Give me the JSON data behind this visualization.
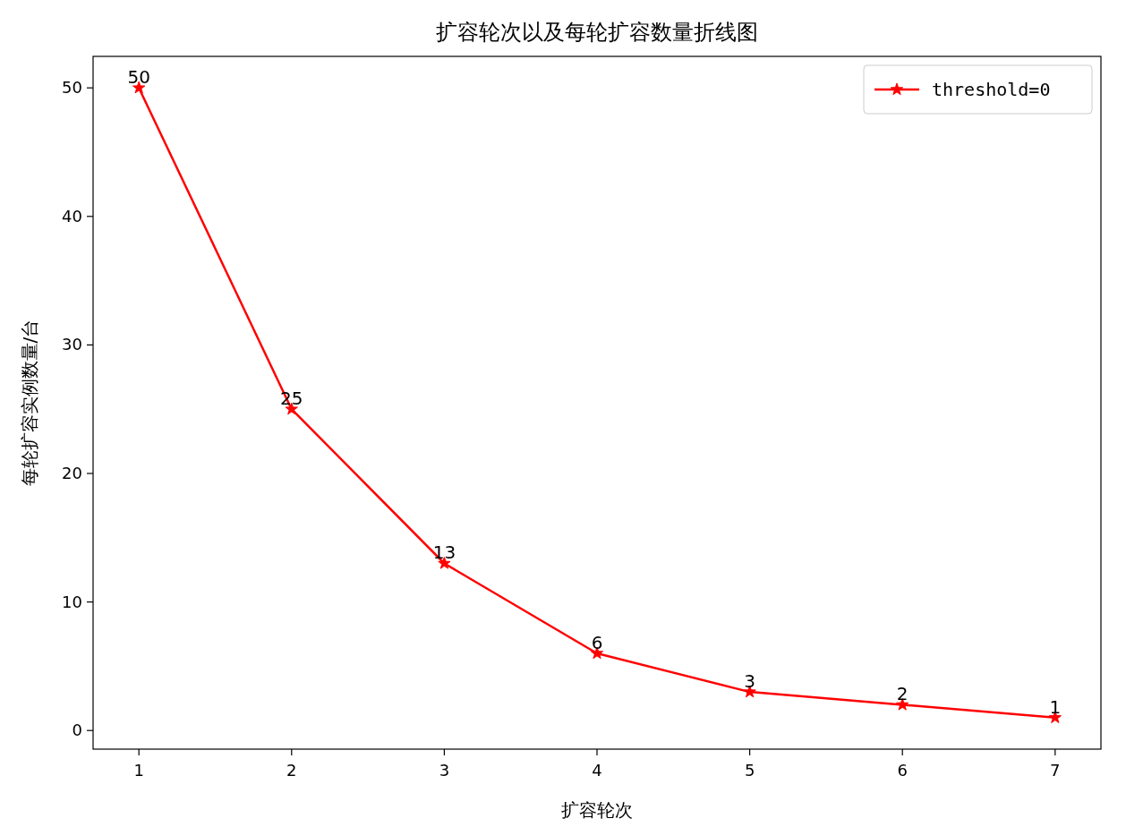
{
  "chart_data": {
    "type": "line",
    "title": "扩容轮次以及每轮扩容数量折线图",
    "xlabel": "扩容轮次",
    "ylabel": "每轮扩容实例数量/台",
    "x": [
      1,
      2,
      3,
      4,
      5,
      6,
      7
    ],
    "series": [
      {
        "name": "threshold=0",
        "color": "#ff0000",
        "values": [
          50,
          25,
          13,
          6,
          3,
          2,
          1
        ]
      }
    ],
    "xlim": [
      0.7,
      7.3
    ],
    "xticks": [
      1,
      2,
      3,
      4,
      5,
      6,
      7
    ],
    "ylim": [
      -1.45,
      52.45
    ],
    "yticks": [
      0,
      10,
      20,
      30,
      40,
      50
    ],
    "data_labels": true,
    "legend": "top right",
    "marker": "star",
    "line_style": "solid",
    "grid": false
  }
}
